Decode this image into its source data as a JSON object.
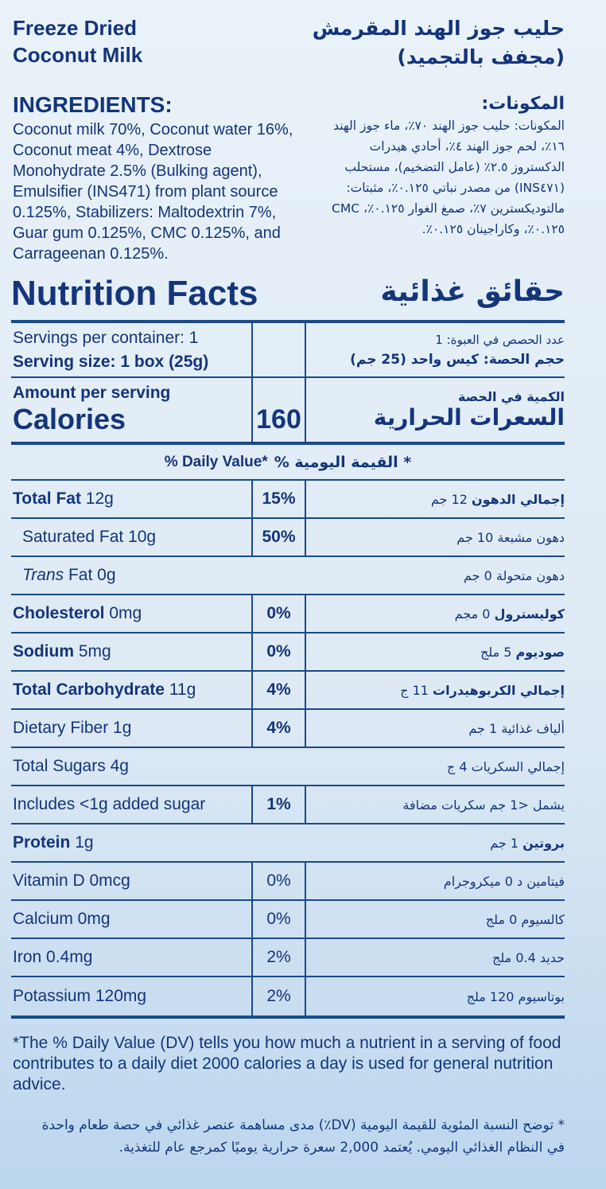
{
  "header": {
    "title_en": [
      "Freeze Dried",
      "Coconut Milk"
    ],
    "title_ar": [
      "حليب جوز الهند المقرمش",
      "(مجفف بالتجميد)"
    ]
  },
  "ingredients": {
    "heading_en": "INGREDIENTS:",
    "text_en": "Coconut milk 70%, Coconut water 16%, Coconut meat 4%, Dextrose Monohydrate 2.5% (Bulking agent), Emulsifier (INS471) from plant source 0.125%, Stabilizers: Maltodextrin 7%, Guar gum 0.125%, CMC 0.125%, and Carrageenan 0.125%.",
    "heading_ar": "المكونات:",
    "text_ar": "المكونات: حليب جوز الهند ٧٠٪، ماء جوز الهند ١٦٪، لحم جوز الهند ٤٪، أحادي هيدرات الدكستروز ٢.٥٪ (عامل التضخيم)، مستحلب (INS٤٧١) من مصدر نباتي ٠.١٢٥٪، مثبتات: مالتوديكسترين ٧٪، صمغ الغوار ٠.١٢٥٪، CMC ٠.١٢٥٪، وكاراجينان ٠.١٢٥٪."
  },
  "nutrition": {
    "title_en": "Nutrition Facts",
    "title_ar": "حقائق غذائية",
    "servings_en": "Servings per container: 1",
    "serving_size_en": "Serving size: 1 box (25g)",
    "servings_ar": "عدد الحصص في العبوة: 1",
    "serving_size_ar": "حجم الحصة: كيس واحد (25 جم)",
    "amount_en": "Amount per serving",
    "calories_en": "Calories",
    "calories": "160",
    "amount_ar": "الكمية في الحصة",
    "calories_ar": "السعرات الحرارية",
    "daily_value_en": "% Daily Value*",
    "daily_value_ar": "* القيمة اليومية %",
    "rows": [
      {
        "en_name": "Total Fat",
        "en_amount": "12g",
        "dv": "15%",
        "ar_name": "إجمالي الدهون",
        "ar_amount": "12 جم"
      },
      {
        "en": "Saturated Fat 10g",
        "dv": "50%",
        "ar": "دهون مشبعة 10 جم"
      },
      {
        "en_italic": "Trans",
        "en_rest": "Fat 0g",
        "ar": "دهون متحولة 0 جم"
      },
      {
        "en_name": "Cholesterol",
        "en_amount": "0mg",
        "dv": "0%",
        "ar_name": "كوليسترول",
        "ar_amount": "0 مجم"
      },
      {
        "en_name": "Sodium",
        "en_amount": "5mg",
        "dv": "0%",
        "ar_name": "صوديوم",
        "ar_amount": "5 ملج"
      },
      {
        "en_name": "Total Carbohydrate",
        "en_amount": "11g",
        "dv": "4%",
        "ar_name": "إجمالي الكربوهيدرات",
        "ar_amount": "11 ج"
      },
      {
        "en": "Dietary Fiber 1g",
        "dv": "4%",
        "ar": "ألياف غذائية 1 جم"
      },
      {
        "en": "Total Sugars 4g",
        "ar": "إجمالي السكريات 4 ج"
      },
      {
        "en": "Includes <1g added sugar",
        "dv": "1%",
        "ar": "يشمل <1 جم سكريات مضافة"
      },
      {
        "en_name": "Protein",
        "en_amount": "1g",
        "ar_name": "بروتين",
        "ar_amount": "1 جم"
      },
      {
        "en": "Vitamin D 0mcg",
        "dv": "0%",
        "ar": "فيتامين د 0 ميكروجرام"
      },
      {
        "en": "Calcium 0mg",
        "dv": "0%",
        "ar": "كالسيوم 0 ملج"
      },
      {
        "en": "Iron 0.4mg",
        "dv": "2%",
        "ar": "حديد 0.4 ملج"
      },
      {
        "en": "Potassium 120mg",
        "dv": "2%",
        "ar": "بوتاسيوم 120 ملج"
      }
    ]
  },
  "footnote": {
    "en": "*The % Daily Value (DV) tells you how much a nutrient in a serving of food contributes to a daily diet 2000 calories a day is used for general nutrition advice.",
    "ar": "* توضح النسبة المئوية للقيمة اليومية (DV٪) مدى مساهمة عنصر غذائي في حصة طعام واحدة في النظام الغذائي اليومي. يُعتمد 2,000 سعرة حرارية يوميًا كمرجع عام للتغذية."
  }
}
